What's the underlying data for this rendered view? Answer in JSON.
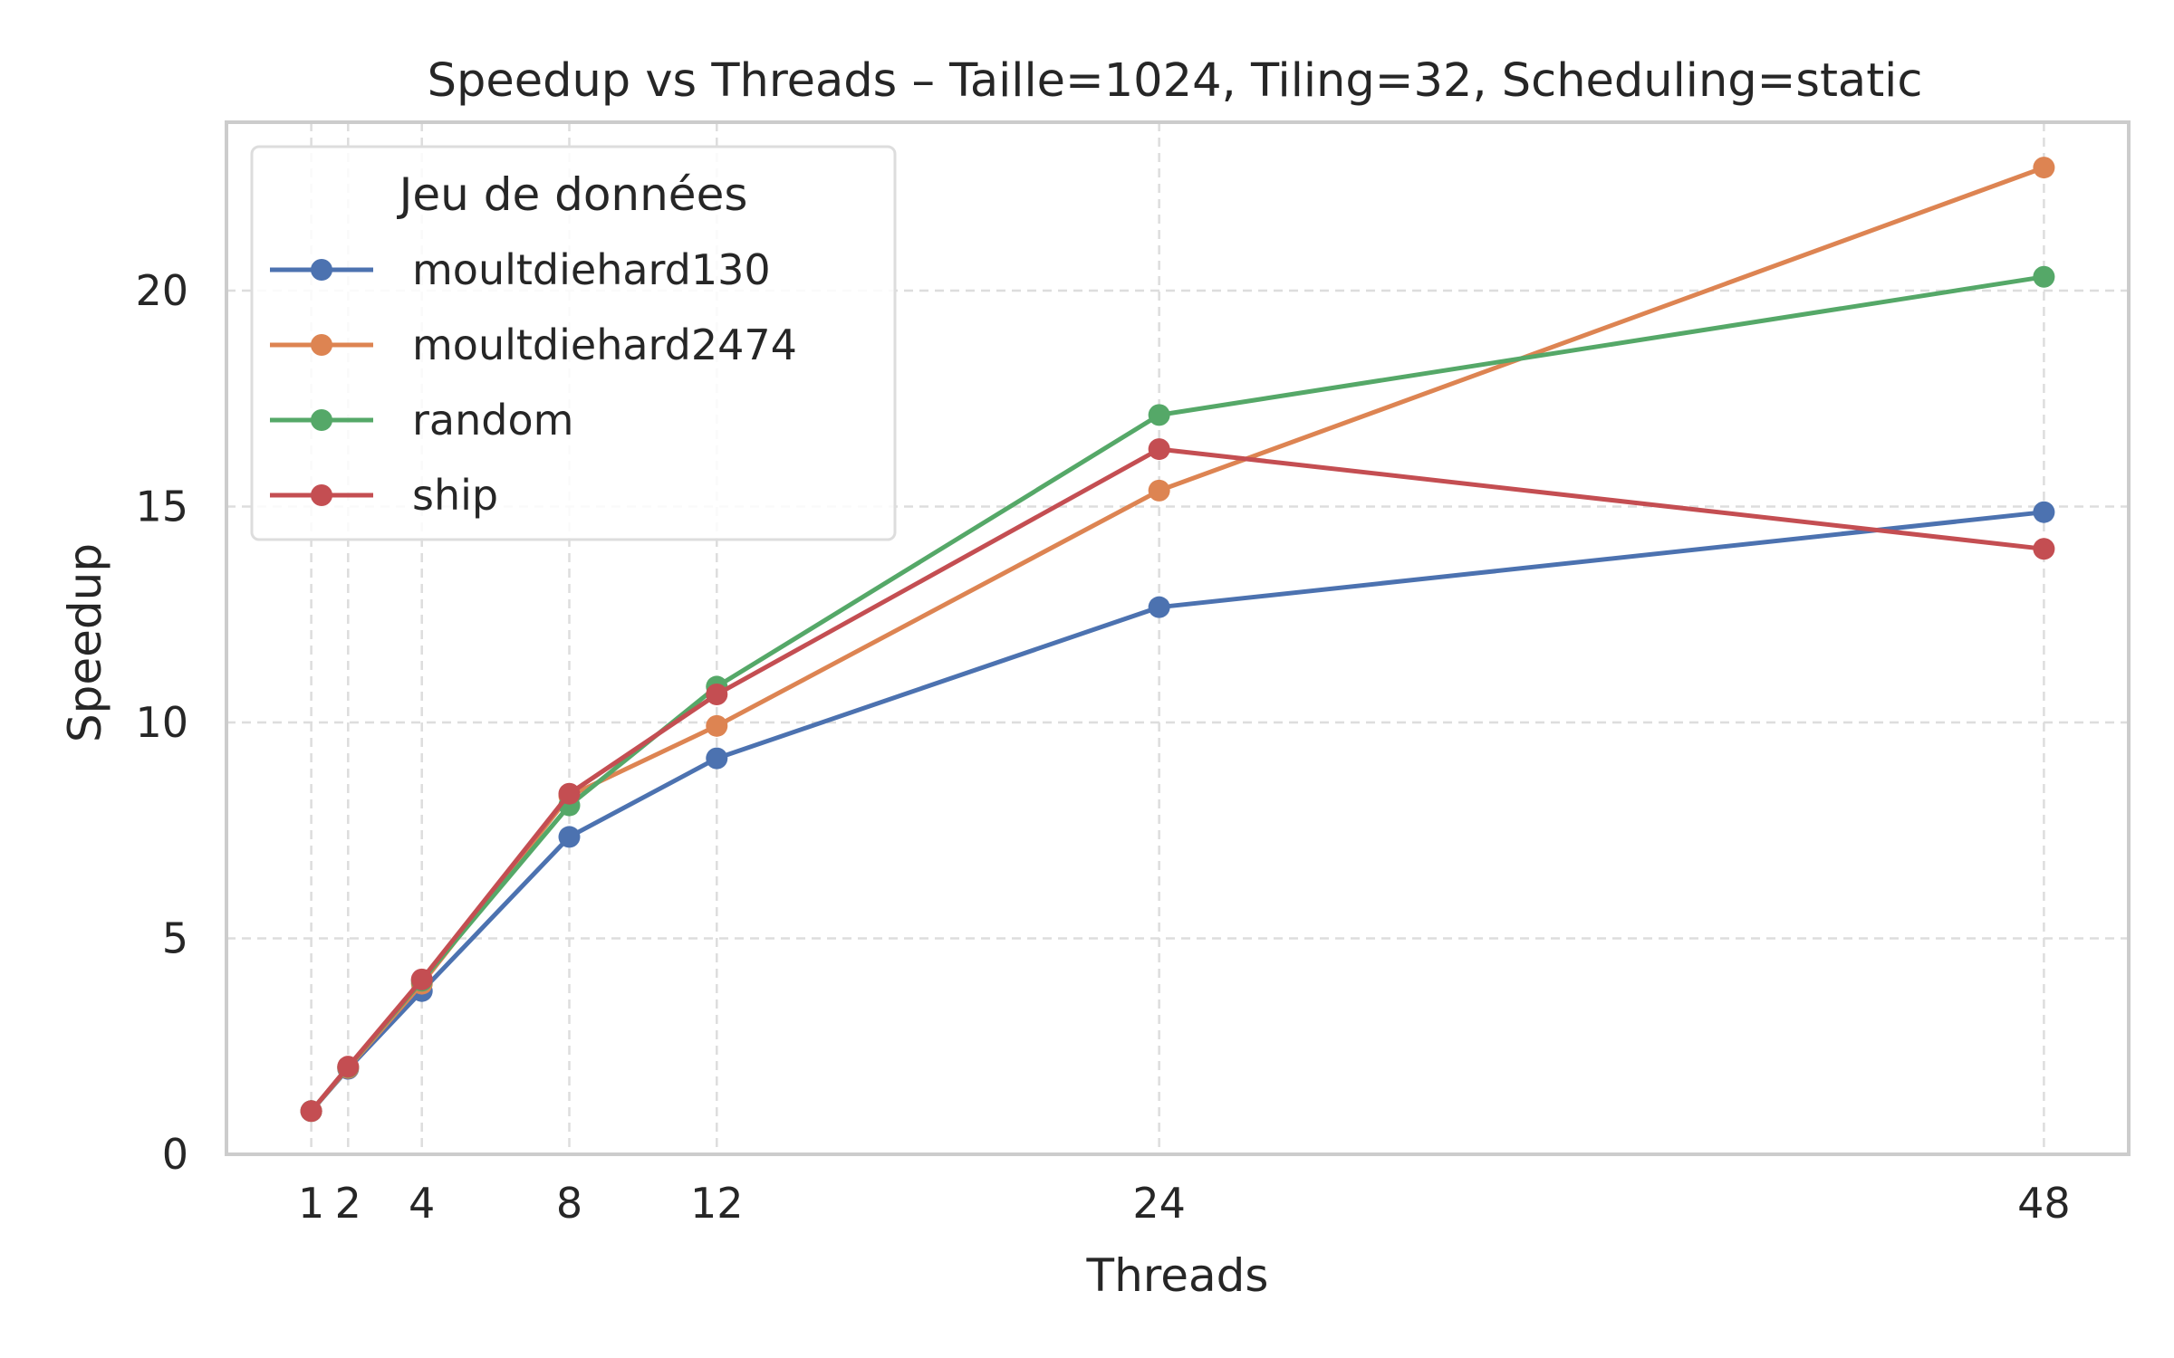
{
  "chart_data": {
    "type": "line",
    "title": "Speedup vs Threads – Taille=1024, Tiling=32, Scheduling=static",
    "xlabel": "Threads",
    "ylabel": "Speedup",
    "x": [
      1,
      2,
      4,
      8,
      12,
      24,
      48
    ],
    "x_ticks": [
      "1",
      "2",
      "4",
      "8",
      "12",
      "24",
      "48"
    ],
    "y_ticks": [
      "0",
      "5",
      "10",
      "15",
      "20"
    ],
    "xlim": [
      -1.3,
      50.3
    ],
    "ylim": [
      0,
      23.9
    ],
    "grid": true,
    "legend": {
      "title": "Jeu de données",
      "placement": "top-left"
    },
    "series": [
      {
        "name": "moultdiehard130",
        "color": "#4c72b0",
        "values": [
          1.0,
          1.98,
          3.78,
          7.35,
          9.17,
          12.67,
          14.87
        ]
      },
      {
        "name": "moultdiehard2474",
        "color": "#dd8452",
        "values": [
          1.0,
          2.0,
          3.95,
          8.3,
          9.92,
          15.37,
          22.85
        ]
      },
      {
        "name": "random",
        "color": "#55a868",
        "values": [
          1.0,
          2.02,
          4.02,
          8.08,
          10.83,
          17.12,
          20.32
        ]
      },
      {
        "name": "ship",
        "color": "#c44e52",
        "values": [
          1.0,
          2.03,
          4.05,
          8.35,
          10.65,
          16.33,
          14.02
        ]
      }
    ]
  }
}
